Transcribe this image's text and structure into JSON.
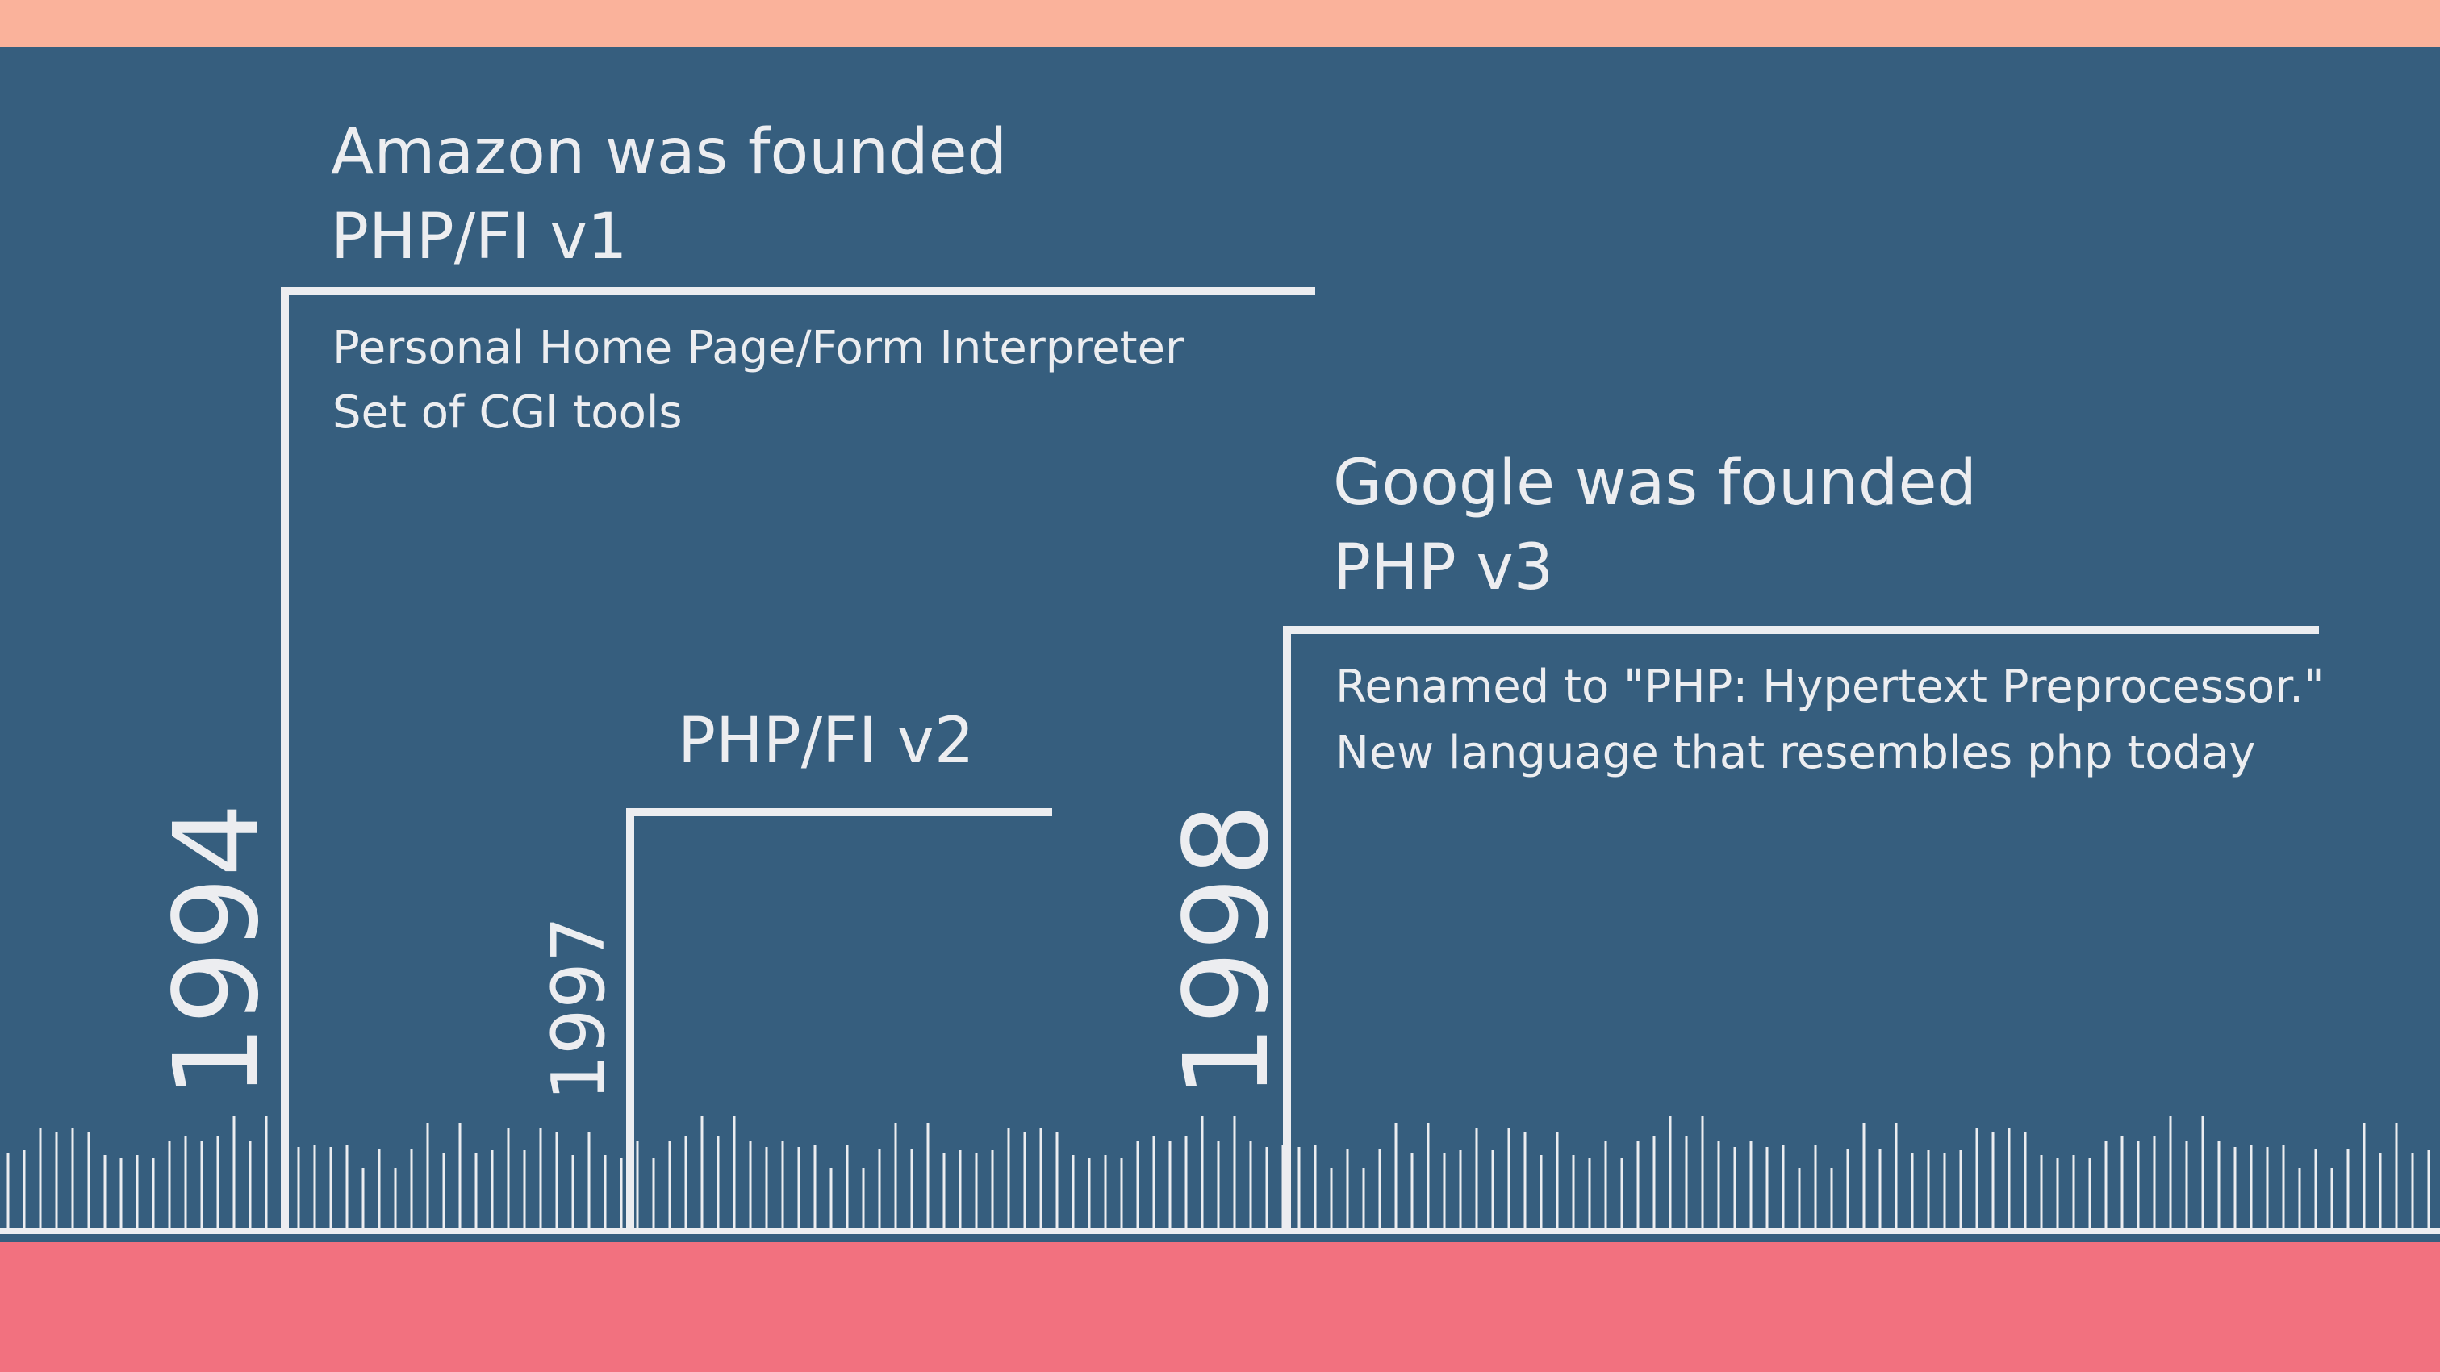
{
  "colors": {
    "top_band": "#fab29b",
    "background": "#365e7e",
    "bottom_band": "#f2717f",
    "line": "#ecedf0"
  },
  "events": [
    {
      "year": "1994",
      "headline": [
        "Amazon was founded",
        "PHP/FI v1"
      ],
      "details": [
        "Personal Home Page/Form Interpreter",
        "Set of CGI tools"
      ]
    },
    {
      "year": "1997",
      "headline": [
        "PHP/FI v2"
      ],
      "details": []
    },
    {
      "year": "1998",
      "headline": [
        "Google was founded",
        "PHP v3"
      ],
      "details": [
        "Renamed to \"PHP: Hypertext Preprocessor.\"",
        "New language that resembles php today"
      ]
    }
  ]
}
